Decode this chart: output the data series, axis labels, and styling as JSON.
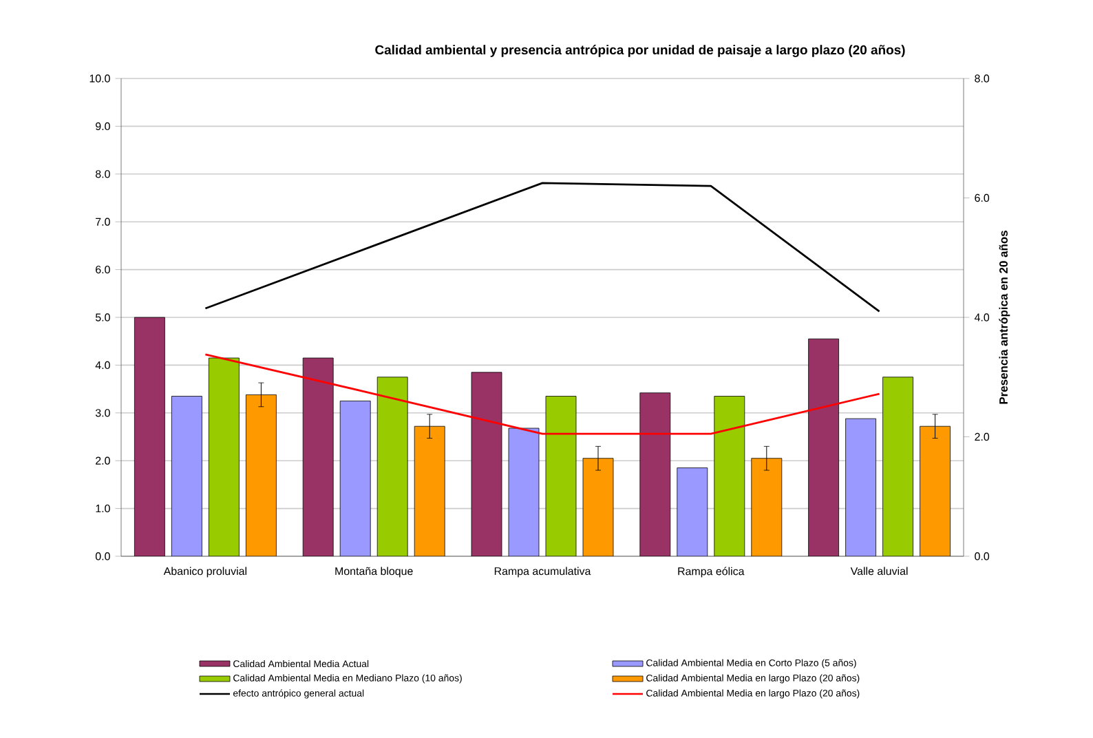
{
  "chart_data": {
    "type": "bar",
    "title": "Calidad ambiental y presencia antrópica por unidad de paisaje a largo plazo (20 años)",
    "y2label": "Presencia antrópica en 20 años",
    "categories": [
      "Abanico proluvial",
      "Montaña bloque",
      "Rampa acumulativa",
      "Rampa eólica",
      "Valle aluvial"
    ],
    "series": [
      {
        "name": "Calidad Ambiental Media Actual",
        "color": "#993366",
        "values": [
          5.0,
          4.15,
          3.85,
          3.42,
          4.55
        ]
      },
      {
        "name": "Calidad Ambiental Media en Corto Plazo (5 años)",
        "color": "#9999ff",
        "values": [
          3.35,
          3.25,
          2.68,
          1.85,
          2.88
        ]
      },
      {
        "name": "Calidad Ambiental Media en Mediano Plazo (10 años)",
        "color": "#99cc00",
        "values": [
          4.15,
          3.75,
          3.35,
          3.35,
          3.75
        ]
      },
      {
        "name": "Calidad Ambiental Media en largo Plazo (20 años)",
        "color": "#ff9900",
        "values": [
          3.38,
          2.72,
          2.05,
          2.05,
          2.72
        ],
        "errors": [
          0.25,
          0.25,
          0.25,
          0.25,
          0.25
        ]
      },
      {
        "name": "efecto antrópico general actual",
        "color": "#000000",
        "type": "line",
        "axis": "y2",
        "values": [
          4.15,
          5.2,
          6.25,
          6.2,
          4.1
        ]
      },
      {
        "name": "Calidad Ambiental Media en largo Plazo (20 años)",
        "color": "#ff0000",
        "type": "line",
        "axis": "y2",
        "values": [
          3.38,
          2.72,
          2.05,
          2.05,
          2.72
        ]
      }
    ],
    "ylim": [
      0,
      10
    ],
    "yticks": [
      {
        "value": 0,
        "label": "0.0"
      },
      {
        "value": 1,
        "label": "1.0"
      },
      {
        "value": 2,
        "label": "2.0"
      },
      {
        "value": 3,
        "label": "3.0"
      },
      {
        "value": 4,
        "label": "4.0"
      },
      {
        "value": 5,
        "label": "5.0"
      },
      {
        "value": 6,
        "label": "6.0"
      },
      {
        "value": 7,
        "label": "7.0"
      },
      {
        "value": 8,
        "label": "8.0"
      },
      {
        "value": 9,
        "label": "9.0"
      },
      {
        "value": 10,
        "label": "10.0"
      }
    ],
    "y2lim": [
      0,
      8
    ],
    "y2ticks": [
      {
        "value": 0,
        "label": "0.0"
      },
      {
        "value": 2,
        "label": "2.0"
      },
      {
        "value": 4,
        "label": "4.0"
      },
      {
        "value": 6,
        "label": "6.0"
      },
      {
        "value": 8,
        "label": "8.0"
      }
    ],
    "grid": "y",
    "legend": "bottom",
    "marker": "none"
  }
}
